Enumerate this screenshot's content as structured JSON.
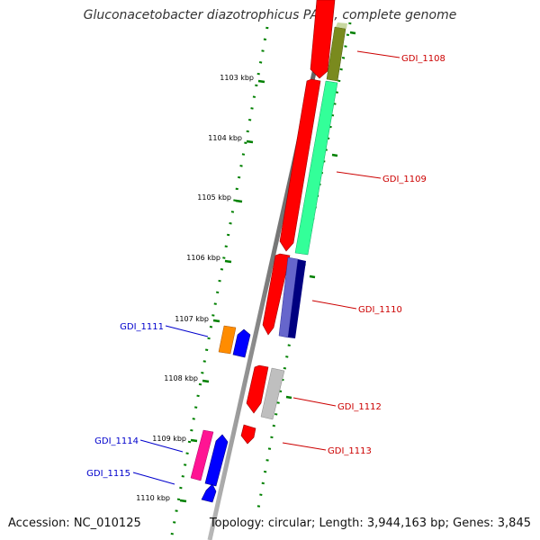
{
  "title": "Gluconacetobacter diazotrophicus PAl 5, complete genome",
  "accession": "Accession: NC_010125",
  "topology": "Topology: circular; Length: 3,944,163 bp; Genes: 3,845",
  "ticks": [
    {
      "label": "1103 kbp"
    },
    {
      "label": "1104 kbp"
    },
    {
      "label": "1105 kbp"
    },
    {
      "label": "1106 kbp"
    },
    {
      "label": "1107 kbp"
    },
    {
      "label": "1108 kbp"
    },
    {
      "label": "1109 kbp"
    },
    {
      "label": "1110 kbp"
    }
  ],
  "genes": [
    {
      "name": "GDI_1108",
      "strand": "+",
      "color": "#ff0000",
      "label_color": "#cc0000"
    },
    {
      "name": "GDI_1109",
      "strand": "+",
      "color": "#ff0000",
      "label_color": "#cc0000"
    },
    {
      "name": "GDI_1110",
      "strand": "+",
      "color": "#ff0000",
      "label_color": "#cc0000"
    },
    {
      "name": "GDI_1111",
      "strand": "-",
      "color": "#0000ff",
      "label_color": "#0000cc"
    },
    {
      "name": "GDI_1112",
      "strand": "+",
      "color": "#ff0000",
      "label_color": "#cc0000"
    },
    {
      "name": "GDI_1113",
      "strand": "+",
      "color": "#ff0000",
      "label_color": "#cc0000"
    },
    {
      "name": "GDI_1114",
      "strand": "-",
      "color": "#0000ff",
      "label_color": "#0000cc"
    },
    {
      "name": "GDI_1115",
      "strand": "-",
      "color": "#0000ff",
      "label_color": "#0000cc"
    }
  ],
  "colors": {
    "backbone": "#8a8a8a",
    "ruler": "#008000",
    "olive": "#7a8a1e",
    "aquamarine": "#33ff99",
    "slate": "#6666cc",
    "navy": "#000080",
    "orange": "#ff8c00",
    "gray": "#bfbfbf",
    "magenta": "#ff1493"
  }
}
